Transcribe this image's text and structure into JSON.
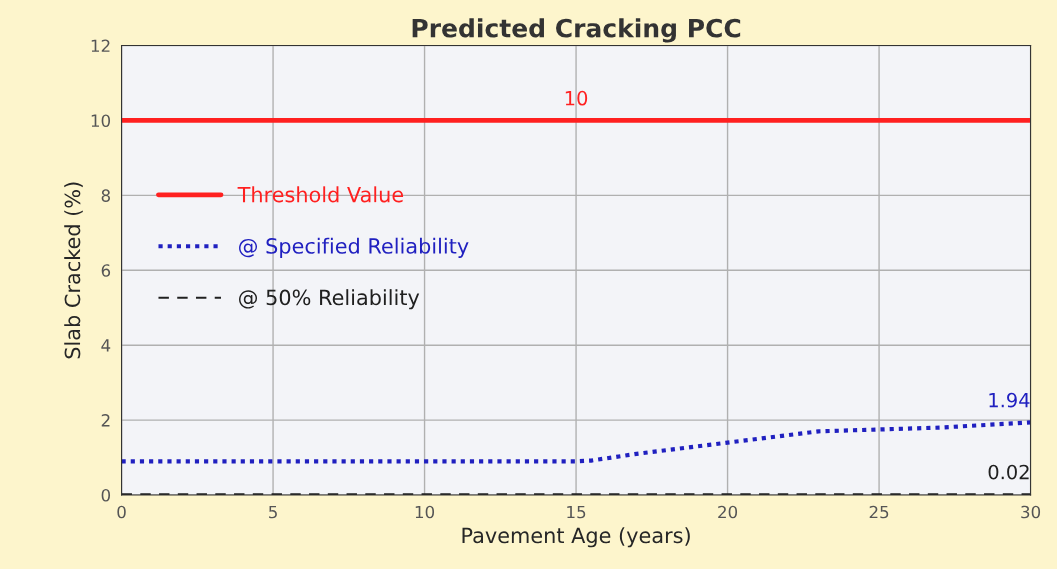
{
  "chart_data": {
    "type": "line",
    "title": "Predicted Cracking PCC",
    "xlabel": "Pavement Age (years)",
    "ylabel": "Slab Cracked (%)",
    "xlim": [
      0,
      30
    ],
    "xticks": [
      0,
      5,
      10,
      15,
      20,
      25,
      30
    ],
    "ylim": [
      0,
      12
    ],
    "yticks": [
      0,
      2,
      4,
      6,
      8,
      10,
      12
    ],
    "grid": true,
    "legend": "left",
    "series": [
      {
        "name": "Threshold Value",
        "color": "#ff2020",
        "line_style": "solid",
        "x": [
          0,
          15,
          30
        ],
        "values": [
          10,
          10,
          10
        ],
        "value_labels": [
          null,
          "10",
          null
        ]
      },
      {
        "name": "@ Specified Reliability",
        "color": "#2020c0",
        "line_style": "dotted",
        "x": [
          0,
          5,
          10,
          15,
          15.5,
          17,
          19,
          20,
          21,
          22,
          23,
          25,
          27,
          30
        ],
        "values": [
          0.9,
          0.9,
          0.9,
          0.9,
          0.92,
          1.1,
          1.3,
          1.4,
          1.5,
          1.6,
          1.7,
          1.75,
          1.8,
          1.94
        ],
        "value_labels": [
          null,
          null,
          null,
          null,
          null,
          null,
          null,
          null,
          null,
          null,
          null,
          null,
          null,
          "1.94"
        ]
      },
      {
        "name": "@ 50% Reliability",
        "color": "#202020",
        "line_style": "dashed",
        "x": [
          0,
          30
        ],
        "values": [
          0.02,
          0.02
        ],
        "value_labels": [
          null,
          "0.02"
        ]
      }
    ]
  }
}
